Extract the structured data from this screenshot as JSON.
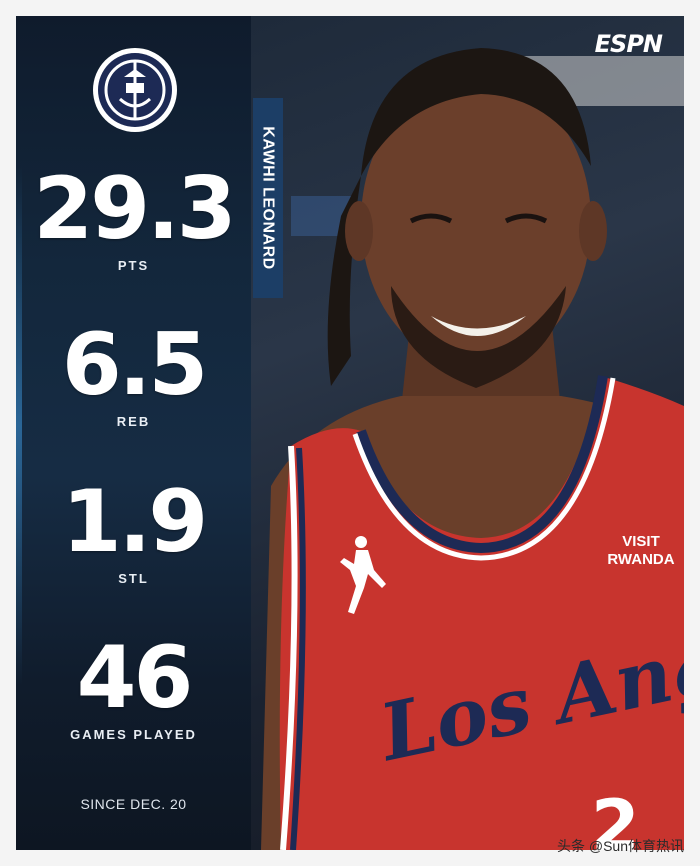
{
  "brand": {
    "logo": "espn"
  },
  "player": {
    "name": "KAWHI LEONARD"
  },
  "stats": [
    {
      "value": "29.3",
      "label": "PTS"
    },
    {
      "value": "6.5",
      "label": "REB"
    },
    {
      "value": "1.9",
      "label": "STL"
    },
    {
      "value": "46",
      "label": "GAMES PLAYED"
    }
  ],
  "footer": {
    "since": "SINCE DEC. 20"
  },
  "jersey": {
    "sponsor_line1": "VISIT",
    "sponsor_line2": "RWANDA",
    "team_script": "Los Angeles"
  },
  "watermark": "头条 @Sun体育热讯",
  "colors": {
    "jersey_red": "#c8342e",
    "jersey_navy": "#1d2a55",
    "panel_blue": "#13273c",
    "tag_blue": "#1c3e66"
  }
}
